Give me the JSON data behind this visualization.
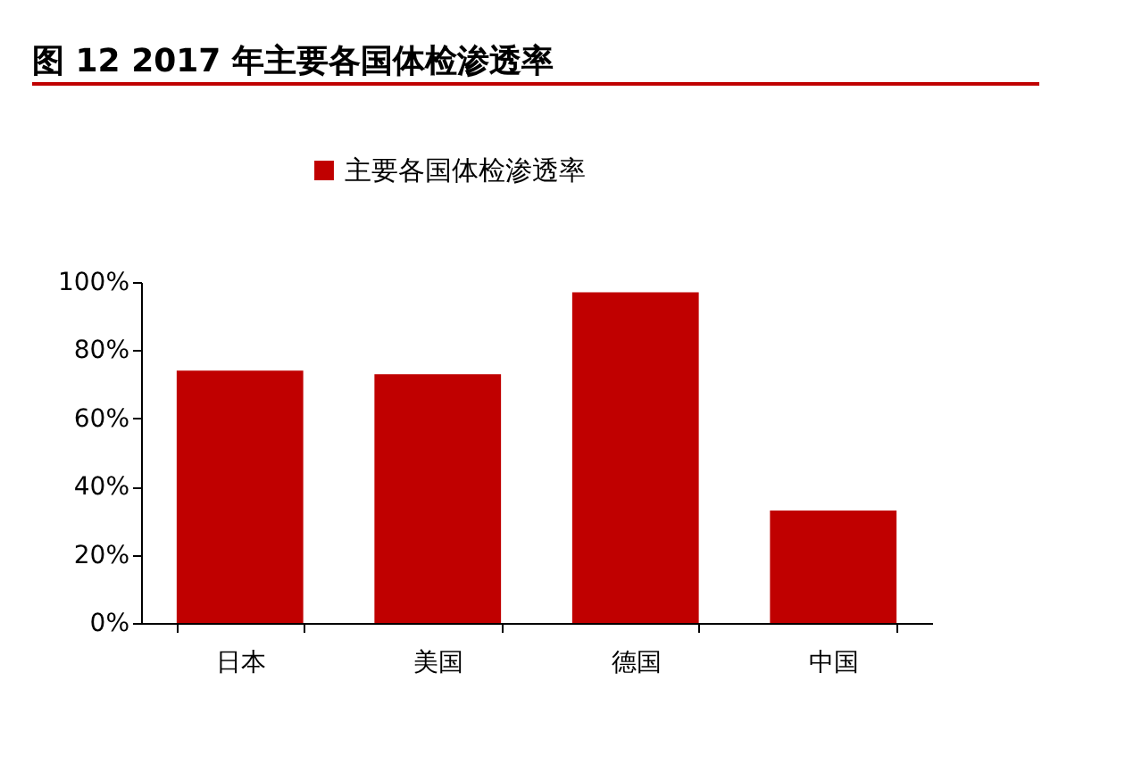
{
  "chart_data": {
    "type": "bar",
    "title": "图 12 2017 年主要各国体检渗透率",
    "categories": [
      "日本",
      "美国",
      "德国",
      "中国"
    ],
    "series": [
      {
        "name": "主要各国体检渗透率",
        "color": "#c00000",
        "values": [
          74,
          73,
          97,
          33
        ]
      }
    ],
    "ylim": [
      0,
      100
    ],
    "yticks": [
      {
        "value": 0,
        "label": "0%"
      },
      {
        "value": 20,
        "label": "20%"
      },
      {
        "value": 40,
        "label": "40%"
      },
      {
        "value": 60,
        "label": "60%"
      },
      {
        "value": 80,
        "label": "80%"
      },
      {
        "value": 100,
        "label": "100%"
      }
    ],
    "legend": "top"
  }
}
